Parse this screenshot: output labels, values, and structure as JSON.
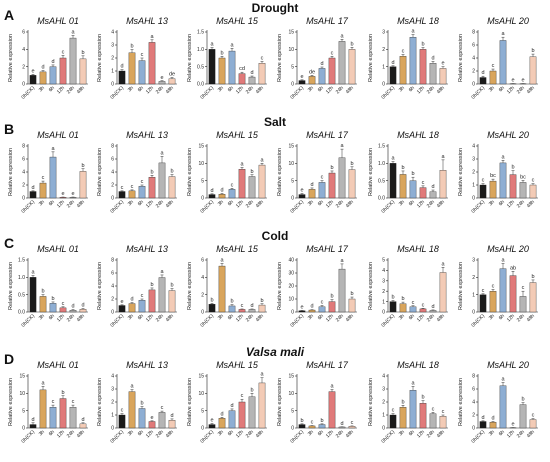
{
  "figure": {
    "rows": [
      {
        "label": "A",
        "title": "Drought"
      },
      {
        "label": "B",
        "title": "Salt"
      },
      {
        "label": "C",
        "title": "Cold"
      },
      {
        "label": "D",
        "title": "Valsa mali"
      }
    ],
    "y_axis_label": "Relative expression",
    "categories": [
      "0h(CK)",
      "3h",
      "6h",
      "12h",
      "24h",
      "48h"
    ],
    "bar_colors": [
      "#1a1a1a",
      "#d9a55c",
      "#8eaed3",
      "#e07a7a",
      "#b5b5b5",
      "#f3cbb6"
    ]
  },
  "chart_data": [
    {
      "type": "bar",
      "row": "A",
      "title": "MsAHL 01",
      "ylim": [
        0,
        6
      ],
      "yticks": [
        0,
        2,
        4,
        6
      ],
      "values": [
        1,
        1.4,
        2.0,
        3.0,
        5.3,
        2.9
      ],
      "errors": [
        0.1,
        0.15,
        0.2,
        0.3,
        0.3,
        0.35
      ],
      "labels": [
        "e",
        "d",
        "d",
        "c",
        "a",
        "b"
      ]
    },
    {
      "type": "bar",
      "row": "A",
      "title": "MsAHL 13",
      "ylim": [
        0,
        4
      ],
      "yticks": [
        0,
        1,
        2,
        3,
        4
      ],
      "values": [
        1,
        2.4,
        1.8,
        3.2,
        0.2,
        0.4
      ],
      "errors": [
        0.1,
        0.25,
        0.2,
        0.2,
        0.05,
        0.1
      ],
      "labels": [
        "d",
        "b",
        "c",
        "a",
        "e",
        "de"
      ]
    },
    {
      "type": "bar",
      "row": "A",
      "title": "MsAHL 15",
      "ylim": [
        0,
        1.5
      ],
      "yticks": [
        0,
        0.5,
        1.0,
        1.5
      ],
      "values": [
        1,
        0.75,
        0.95,
        0.3,
        0.2,
        0.6
      ],
      "errors": [
        0.05,
        0.05,
        0.08,
        0.04,
        0.03,
        0.05
      ],
      "labels": [
        "a",
        "b",
        "a",
        "cd",
        "d",
        "c"
      ]
    },
    {
      "type": "bar",
      "row": "A",
      "title": "MsAHL 17",
      "ylim": [
        0,
        15
      ],
      "yticks": [
        0,
        5,
        10,
        15
      ],
      "values": [
        1,
        2.2,
        4.5,
        7.5,
        12.3,
        10
      ],
      "errors": [
        0.2,
        0.3,
        0.4,
        0.5,
        0.6,
        0.6
      ],
      "labels": [
        "e",
        "de",
        "d",
        "c",
        "a",
        "b"
      ]
    },
    {
      "type": "bar",
      "row": "A",
      "title": "MsAHL 18",
      "ylim": [
        0,
        3
      ],
      "yticks": [
        0,
        1,
        2,
        3
      ],
      "values": [
        1,
        1.6,
        2.7,
        2.0,
        1.2,
        0.9
      ],
      "errors": [
        0.05,
        0.1,
        0.15,
        0.1,
        0.1,
        0.1
      ],
      "labels": [
        "d",
        "c",
        "a",
        "b",
        "d",
        "e"
      ]
    },
    {
      "type": "bar",
      "row": "A",
      "title": "MsAHL 20",
      "ylim": [
        0,
        8
      ],
      "yticks": [
        0,
        2,
        4,
        6,
        8
      ],
      "values": [
        1,
        2.0,
        6.7,
        0.05,
        0.05,
        4.2
      ],
      "errors": [
        0.2,
        0.3,
        0.5,
        0.02,
        0.02,
        0.4
      ],
      "labels": [
        "d",
        "c",
        "a",
        "e",
        "e",
        "b"
      ]
    },
    {
      "type": "bar",
      "row": "B",
      "title": "MsAHL 01",
      "ylim": [
        0,
        8
      ],
      "yticks": [
        0,
        2,
        4,
        6,
        8
      ],
      "values": [
        1,
        2.3,
        6.3,
        0.1,
        0.1,
        4.1
      ],
      "errors": [
        0.1,
        0.3,
        0.8,
        0.05,
        0.05,
        0.4
      ],
      "labels": [
        "d",
        "c",
        "a",
        "e",
        "e",
        "b"
      ]
    },
    {
      "type": "bar",
      "row": "B",
      "title": "MsAHL 13",
      "ylim": [
        0,
        8
      ],
      "yticks": [
        0,
        2,
        4,
        6,
        8
      ],
      "values": [
        1,
        1.1,
        1.8,
        3.2,
        5.4,
        3.3
      ],
      "errors": [
        0.1,
        0.15,
        0.2,
        0.3,
        1.0,
        0.3
      ],
      "labels": [
        "c",
        "c",
        "c",
        "b",
        "a",
        "b"
      ]
    },
    {
      "type": "bar",
      "row": "B",
      "title": "MsAHL 15",
      "ylim": [
        0,
        15
      ],
      "yticks": [
        0,
        5,
        10,
        15
      ],
      "values": [
        1,
        1.1,
        2.5,
        8.3,
        6.2,
        9.5
      ],
      "errors": [
        0.2,
        0.2,
        0.3,
        0.5,
        0.5,
        0.5
      ],
      "labels": [
        "d",
        "d",
        "c",
        "a",
        "b",
        "a"
      ]
    },
    {
      "type": "bar",
      "row": "B",
      "title": "MsAHL 17",
      "ylim": [
        0,
        15
      ],
      "yticks": [
        0,
        5,
        10,
        15
      ],
      "values": [
        1,
        2.5,
        4.5,
        7.2,
        11.6,
        8.2
      ],
      "errors": [
        0.3,
        0.4,
        0.5,
        0.6,
        2.5,
        0.8
      ],
      "labels": [
        "e",
        "d",
        "c",
        "b",
        "a",
        "b"
      ]
    },
    {
      "type": "bar",
      "row": "B",
      "title": "MsAHL 18",
      "ylim": [
        0,
        1.5
      ],
      "yticks": [
        0,
        0.5,
        1.0,
        1.5
      ],
      "values": [
        1,
        0.68,
        0.5,
        0.3,
        0.18,
        0.8
      ],
      "errors": [
        0.05,
        0.1,
        0.1,
        0.05,
        0.05,
        0.3
      ],
      "labels": [
        "a",
        "b",
        "b",
        "c",
        "d",
        "a"
      ]
    },
    {
      "type": "bar",
      "row": "B",
      "title": "MsAHL 20",
      "ylim": [
        0,
        4
      ],
      "yticks": [
        0,
        1,
        2,
        3,
        4
      ],
      "values": [
        1,
        1.3,
        2.7,
        1.8,
        1.2,
        1.0
      ],
      "errors": [
        0.1,
        0.15,
        0.2,
        0.3,
        0.15,
        0.1
      ],
      "labels": [
        "c",
        "bc",
        "a",
        "b",
        "bc",
        "c"
      ]
    },
    {
      "type": "bar",
      "row": "C",
      "title": "MsAHL 01",
      "ylim": [
        0,
        1.5
      ],
      "yticks": [
        0,
        0.5,
        1.0,
        1.5
      ],
      "values": [
        1,
        0.45,
        0.25,
        0.12,
        0.05,
        0.08
      ],
      "errors": [
        0.05,
        0.05,
        0.04,
        0.03,
        0.02,
        0.02
      ],
      "labels": [
        "a",
        "b",
        "b",
        "c",
        "d",
        "d"
      ]
    },
    {
      "type": "bar",
      "row": "C",
      "title": "MsAHL 13",
      "ylim": [
        0,
        8
      ],
      "yticks": [
        0,
        2,
        4,
        6,
        8
      ],
      "values": [
        1,
        1.3,
        1.8,
        3.4,
        5.3,
        3.3
      ],
      "errors": [
        0.1,
        0.15,
        0.2,
        0.3,
        0.4,
        0.3
      ],
      "labels": [
        "e",
        "d",
        "c",
        "b",
        "a",
        "b"
      ]
    },
    {
      "type": "bar",
      "row": "C",
      "title": "MsAHL 15",
      "ylim": [
        0,
        6
      ],
      "yticks": [
        0,
        2,
        4,
        6
      ],
      "values": [
        0.9,
        5.3,
        0.7,
        0.3,
        0.3,
        0.8
      ],
      "errors": [
        0.1,
        0.3,
        0.15,
        0.05,
        0.05,
        0.15
      ],
      "labels": [
        "b",
        "a",
        "b",
        "c",
        "d",
        "b"
      ]
    },
    {
      "type": "bar",
      "row": "C",
      "title": "MsAHL 17",
      "ylim": [
        0,
        40
      ],
      "yticks": [
        0,
        10,
        20,
        30,
        40
      ],
      "values": [
        1,
        1.5,
        4,
        8,
        33,
        10
      ],
      "errors": [
        0.2,
        0.3,
        1.0,
        1.5,
        4.0,
        1.5
      ],
      "labels": [
        "e",
        "d",
        "c",
        "b",
        "a",
        "b"
      ]
    },
    {
      "type": "bar",
      "row": "C",
      "title": "MsAHL 18",
      "ylim": [
        0,
        5
      ],
      "yticks": [
        0,
        1,
        2,
        3,
        4,
        5
      ],
      "values": [
        1,
        0.8,
        0.5,
        0.3,
        0.15,
        3.8
      ],
      "errors": [
        0.1,
        0.15,
        0.1,
        0.05,
        0.05,
        0.5
      ],
      "labels": [
        "b",
        "b",
        "c",
        "c",
        "d",
        "a"
      ]
    },
    {
      "type": "bar",
      "row": "C",
      "title": "MsAHL 20",
      "ylim": [
        0,
        3
      ],
      "yticks": [
        0,
        1,
        2,
        3
      ],
      "values": [
        1,
        1.2,
        2.5,
        2.1,
        0.9,
        1.7
      ],
      "errors": [
        0.05,
        0.1,
        0.3,
        0.25,
        0.3,
        0.15
      ],
      "labels": [
        "c",
        "c",
        "a",
        "ab",
        "c",
        "b"
      ]
    },
    {
      "type": "bar",
      "row": "D",
      "title": "MsAHL 01",
      "ylim": [
        0,
        15
      ],
      "yticks": [
        0,
        5,
        10,
        15
      ],
      "values": [
        1,
        11,
        6,
        8.5,
        6,
        1.2
      ],
      "errors": [
        0.5,
        1.0,
        0.6,
        0.8,
        0.6,
        0.3
      ],
      "labels": [
        "d",
        "a",
        "c",
        "b",
        "c",
        "d"
      ]
    },
    {
      "type": "bar",
      "row": "D",
      "title": "MsAHL 13",
      "ylim": [
        0,
        4
      ],
      "yticks": [
        0,
        1,
        2,
        3,
        4
      ],
      "values": [
        1,
        2.8,
        1.5,
        0.5,
        1.2,
        0.6
      ],
      "errors": [
        0.1,
        0.15,
        0.15,
        0.05,
        0.1,
        0.1
      ],
      "labels": [
        "c",
        "a",
        "b",
        "e",
        "c",
        "d"
      ]
    },
    {
      "type": "bar",
      "row": "D",
      "title": "MsAHL 15",
      "ylim": [
        0,
        15
      ],
      "yticks": [
        0,
        5,
        10,
        15
      ],
      "values": [
        1,
        2.8,
        5,
        7.5,
        9,
        13
      ],
      "errors": [
        0.3,
        0.3,
        0.5,
        0.8,
        1.0,
        1.5
      ],
      "labels": [
        "e",
        "d",
        "d",
        "c",
        "b",
        "a"
      ]
    },
    {
      "type": "bar",
      "row": "D",
      "title": "MsAHL 17",
      "ylim": [
        0,
        15
      ],
      "yticks": [
        0,
        5,
        10,
        15
      ],
      "values": [
        1,
        0.6,
        1,
        10.5,
        0.3,
        0.5
      ],
      "errors": [
        0.2,
        0.1,
        0.2,
        0.6,
        0.05,
        0.1
      ],
      "labels": [
        "b",
        "c",
        "b",
        "a",
        "d",
        "c"
      ]
    },
    {
      "type": "bar",
      "row": "D",
      "title": "MsAHL 18",
      "ylim": [
        0,
        4
      ],
      "yticks": [
        0,
        1,
        2,
        3,
        4
      ],
      "values": [
        1,
        1.6,
        2.9,
        1.9,
        1.1,
        0.9
      ],
      "errors": [
        0.1,
        0.15,
        0.3,
        0.2,
        0.1,
        0.1
      ],
      "labels": [
        "c",
        "b",
        "a",
        "b",
        "c",
        "c"
      ]
    },
    {
      "type": "bar",
      "row": "D",
      "title": "MsAHL 20",
      "ylim": [
        0,
        8
      ],
      "yticks": [
        0,
        2,
        4,
        6,
        8
      ],
      "values": [
        1,
        0.9,
        6.5,
        0.05,
        3.6,
        1.3
      ],
      "errors": [
        0.1,
        0.1,
        0.5,
        0.02,
        0.3,
        0.15
      ],
      "labels": [
        "d",
        "d",
        "a",
        "e",
        "b",
        "c"
      ]
    }
  ]
}
